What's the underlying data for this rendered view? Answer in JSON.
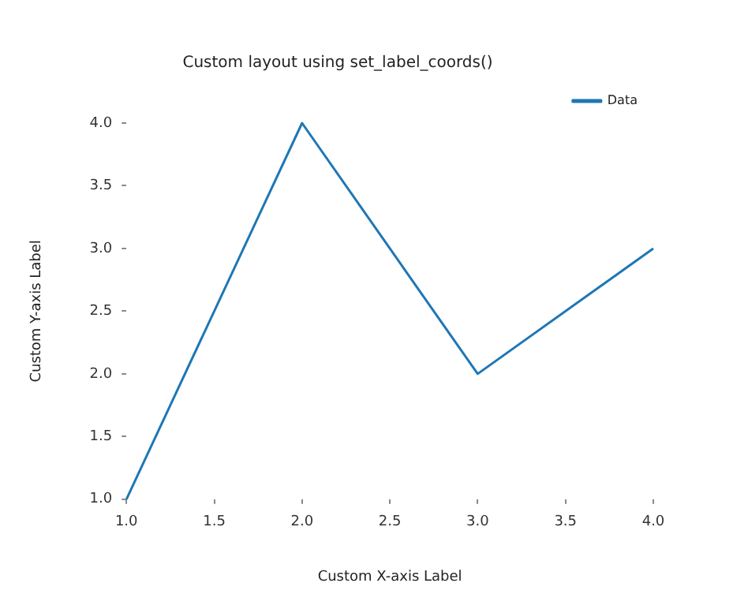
{
  "chart_data": {
    "type": "line",
    "title": "Custom layout using set_label_coords()",
    "xlabel": "Custom X-axis Label",
    "ylabel": "Custom Y-axis Label",
    "x": [
      1,
      2,
      3,
      4
    ],
    "series": [
      {
        "name": "Data",
        "color": "#1f77b4",
        "values": [
          1,
          4,
          2,
          3
        ]
      }
    ],
    "xlim": [
      1,
      4
    ],
    "ylim": [
      1,
      4
    ],
    "xticks": [
      {
        "value": 1,
        "label": "1.0"
      },
      {
        "value": 1.5,
        "label": "1.5"
      },
      {
        "value": 2,
        "label": "2.0"
      },
      {
        "value": 2.5,
        "label": "2.5"
      },
      {
        "value": 3,
        "label": "3.0"
      },
      {
        "value": 3.5,
        "label": "3.5"
      },
      {
        "value": 4,
        "label": "4.0"
      }
    ],
    "yticks": [
      {
        "value": 1,
        "label": "1.0"
      },
      {
        "value": 1.5,
        "label": "1.5"
      },
      {
        "value": 2,
        "label": "2.0"
      },
      {
        "value": 2.5,
        "label": "2.5"
      },
      {
        "value": 3,
        "label": "3.0"
      },
      {
        "value": 3.5,
        "label": "3.5"
      },
      {
        "value": 4,
        "label": "4.0"
      }
    ],
    "grid": false,
    "legend": "top right",
    "marker": "none",
    "line_style": "solid"
  }
}
